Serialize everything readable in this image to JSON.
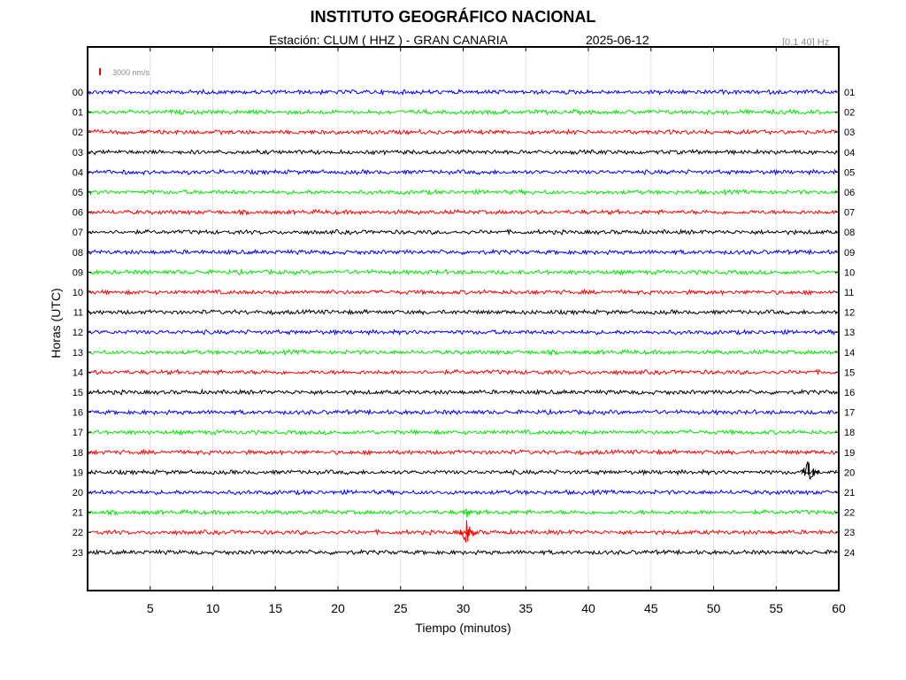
{
  "header": {
    "title": "INSTITUTO GEOGRÁFICO NACIONAL",
    "station": "Estación:  CLUM ( HHZ ) - GRAN CANARIA",
    "date": "2025-06-12",
    "filter": "[0.1 40] Hz"
  },
  "chart_data": {
    "type": "line",
    "title": "INSTITUTO GEOGRÁFICO NACIONAL",
    "xlabel": "Tiempo (minutos)",
    "ylabel": "Horas (UTC)",
    "xlim": [
      0,
      60
    ],
    "x_ticks": [
      5,
      10,
      15,
      20,
      25,
      30,
      35,
      40,
      45,
      50,
      55,
      60
    ],
    "y_ticks_left": [
      "00",
      "01",
      "02",
      "03",
      "04",
      "05",
      "06",
      "07",
      "08",
      "09",
      "10",
      "11",
      "12",
      "13",
      "14",
      "15",
      "16",
      "17",
      "18",
      "19",
      "20",
      "21",
      "22",
      "23"
    ],
    "y_ticks_right": [
      "01",
      "02",
      "03",
      "04",
      "05",
      "06",
      "07",
      "08",
      "09",
      "10",
      "11",
      "12",
      "13",
      "14",
      "15",
      "16",
      "17",
      "18",
      "19",
      "20",
      "21",
      "22",
      "23",
      "24"
    ],
    "scale_label": "3000 nm/s",
    "colors": [
      "#0000ff",
      "#00e600",
      "#ff0000",
      "#000000"
    ],
    "scale_color": "#ff0000",
    "grid": "vertical",
    "events": [
      {
        "hour": "19",
        "minute": 57.6,
        "amplitude": "large"
      },
      {
        "hour": "22",
        "minute": 30.3,
        "amplitude": "large"
      },
      {
        "hour": "21",
        "minute": 30.3,
        "amplitude": "small"
      }
    ]
  }
}
